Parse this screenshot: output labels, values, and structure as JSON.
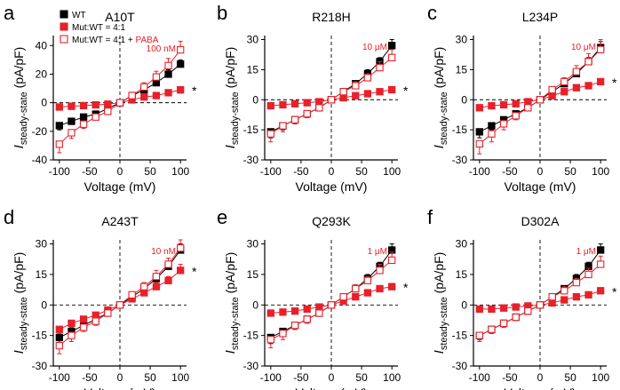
{
  "colors": {
    "wt": "#000000",
    "mut": "#e8202a",
    "paba": "#e8202a",
    "axis": "#000000",
    "dashed": "#000000",
    "paba_text": "#e8202a"
  },
  "legend": {
    "wt_label": "WT",
    "mut_label": "Mut:WT = 4:1",
    "paba_label_prefix": "Mut:WT = 4:1 + ",
    "paba_label_drug": "PABA"
  },
  "chart_data": [
    {
      "type": "line",
      "letter": "a",
      "title": "A10T",
      "concentration": "100 nM",
      "xlabel": "Voltage (mV)",
      "ylabel_main": "I",
      "ylabel_sub": "steady-state",
      "ylabel_unit": " (pA/pF)",
      "xlim": [
        -110,
        110
      ],
      "ylim": [
        -40,
        47
      ],
      "yticks": [
        -40,
        -20,
        0,
        20,
        40
      ],
      "xticks": [
        -100,
        -50,
        0,
        50,
        100
      ],
      "marker": "*",
      "x": [
        -100,
        -80,
        -60,
        -40,
        -20,
        0,
        20,
        40,
        60,
        80,
        100
      ],
      "series": [
        {
          "name": "WT",
          "style": "filled-black",
          "values": [
            -16,
            -13,
            -10,
            -8,
            -4,
            0,
            5,
            9,
            14,
            20,
            27
          ],
          "err": [
            3,
            2,
            2,
            2,
            1,
            0,
            1,
            2,
            2,
            3,
            3
          ]
        },
        {
          "name": "Mut:WT = 4:1",
          "style": "filled-red",
          "values": [
            -3,
            -2.5,
            -2,
            -1.5,
            -1,
            0,
            2,
            4,
            5,
            7,
            9
          ],
          "err": [
            1,
            1,
            1,
            1,
            0.5,
            0,
            1,
            1,
            1,
            1,
            1.5
          ]
        },
        {
          "name": "Mut:WT = 4:1 + PABA",
          "style": "open-red",
          "values": [
            -29,
            -21,
            -15,
            -10,
            -6,
            0,
            5,
            11,
            18,
            26,
            37
          ],
          "err": [
            6,
            4,
            3,
            2,
            1,
            0,
            2,
            3,
            4,
            5,
            6
          ]
        }
      ]
    },
    {
      "type": "line",
      "letter": "b",
      "title": "R218H",
      "concentration": "10 μM",
      "xlabel": "Voltage (mV)",
      "ylabel_main": "I",
      "ylabel_sub": "steady-state",
      "ylabel_unit": " (pA/pF)",
      "xlim": [
        -110,
        110
      ],
      "ylim": [
        -30,
        32
      ],
      "yticks": [
        -30,
        -15,
        0,
        15,
        30
      ],
      "xticks": [
        -100,
        -50,
        0,
        50,
        100
      ],
      "marker": "*",
      "x": [
        -100,
        -80,
        -60,
        -40,
        -20,
        0,
        20,
        40,
        60,
        80,
        100
      ],
      "series": [
        {
          "name": "WT",
          "style": "filled-black",
          "values": [
            -16,
            -13,
            -10,
            -7,
            -4,
            0,
            4,
            8,
            13,
            19,
            27
          ],
          "err": [
            3,
            2,
            2,
            1,
            1,
            0,
            1,
            1,
            2,
            2,
            3
          ]
        },
        {
          "name": "Mut:WT = 4:1",
          "style": "filled-red",
          "values": [
            -3,
            -2.5,
            -2,
            -1.5,
            -1,
            0,
            1,
            2,
            3,
            4,
            5
          ],
          "err": [
            1,
            1,
            0.5,
            0.5,
            0.5,
            0,
            0.5,
            0.5,
            0.5,
            1,
            1
          ]
        },
        {
          "name": "Mut:WT = 4:1 + PABA",
          "style": "open-red",
          "values": [
            -17,
            -13,
            -10,
            -7,
            -4,
            0,
            4,
            7,
            11,
            16,
            21
          ],
          "err": [
            4,
            3,
            2,
            2,
            1,
            0,
            1,
            2,
            2,
            3,
            4
          ]
        }
      ]
    },
    {
      "type": "line",
      "letter": "c",
      "title": "L234P",
      "concentration": "10 μM",
      "xlabel": "Voltage (mV)",
      "ylabel_main": "I",
      "ylabel_sub": "steady-state",
      "ylabel_unit": " (pA/pF)",
      "xlim": [
        -110,
        110
      ],
      "ylim": [
        -30,
        32
      ],
      "yticks": [
        -30,
        -15,
        0,
        15,
        30
      ],
      "xticks": [
        -100,
        -50,
        0,
        50,
        100
      ],
      "marker": "*",
      "x": [
        -100,
        -80,
        -60,
        -40,
        -20,
        0,
        20,
        40,
        60,
        80,
        100
      ],
      "series": [
        {
          "name": "WT",
          "style": "filled-black",
          "values": [
            -16,
            -13,
            -10,
            -7,
            -4,
            0,
            4,
            8,
            13,
            19,
            26
          ],
          "err": [
            3,
            2,
            2,
            1,
            1,
            0,
            1,
            1,
            2,
            2,
            3
          ]
        },
        {
          "name": "Mut:WT = 4:1",
          "style": "filled-red",
          "values": [
            -4,
            -3,
            -2.5,
            -2,
            -1,
            0,
            2,
            4,
            6,
            7,
            9
          ],
          "err": [
            1,
            1,
            1,
            0.5,
            0.5,
            0,
            0.5,
            1,
            1,
            1,
            1
          ]
        },
        {
          "name": "Mut:WT = 4:1 + PABA",
          "style": "open-red",
          "values": [
            -22,
            -17,
            -12,
            -8,
            -4,
            0,
            5,
            9,
            14,
            19,
            25
          ],
          "err": [
            5,
            4,
            3,
            2,
            1,
            0,
            1,
            2,
            3,
            4,
            5
          ]
        }
      ]
    },
    {
      "type": "line",
      "letter": "d",
      "title": "A243T",
      "concentration": "10 nM",
      "xlabel": "Voltage (mV)",
      "ylabel_main": "I",
      "ylabel_sub": "steady-state",
      "ylabel_unit": " (pA/pF)",
      "xlim": [
        -110,
        110
      ],
      "ylim": [
        -30,
        32
      ],
      "yticks": [
        -30,
        -15,
        0,
        15,
        30
      ],
      "xticks": [
        -100,
        -50,
        0,
        50,
        100
      ],
      "marker": "*",
      "x": [
        -100,
        -80,
        -60,
        -40,
        -20,
        0,
        20,
        40,
        60,
        80,
        100
      ],
      "series": [
        {
          "name": "WT",
          "style": "filled-black",
          "values": [
            -16,
            -13,
            -10,
            -7,
            -4,
            0,
            4,
            8,
            13,
            19,
            27
          ],
          "err": [
            3,
            2,
            2,
            1,
            1,
            0,
            1,
            1,
            2,
            2,
            3
          ]
        },
        {
          "name": "Mut:WT = 4:1",
          "style": "filled-red",
          "values": [
            -12,
            -9,
            -7,
            -5,
            -2.5,
            0,
            3,
            6,
            9,
            12,
            17
          ],
          "err": [
            2,
            2,
            1,
            1,
            1,
            0,
            1,
            1,
            2,
            2,
            3
          ]
        },
        {
          "name": "Mut:WT = 4:1 + PABA",
          "style": "open-red",
          "values": [
            -20,
            -15,
            -11,
            -8,
            -4,
            0,
            5,
            9,
            14,
            20,
            28
          ],
          "err": [
            4,
            3,
            2,
            2,
            1,
            0,
            1,
            2,
            3,
            3,
            4
          ]
        }
      ]
    },
    {
      "type": "line",
      "letter": "e",
      "title": "Q293K",
      "concentration": "1 μM",
      "xlabel": "Voltage (mV)",
      "ylabel_main": "I",
      "ylabel_sub": "steady-state",
      "ylabel_unit": " (pA/pF)",
      "xlim": [
        -110,
        110
      ],
      "ylim": [
        -30,
        32
      ],
      "yticks": [
        -30,
        -15,
        0,
        15,
        30
      ],
      "xticks": [
        -100,
        -50,
        0,
        50,
        100
      ],
      "marker": "*",
      "x": [
        -100,
        -80,
        -60,
        -40,
        -20,
        0,
        20,
        40,
        60,
        80,
        100
      ],
      "series": [
        {
          "name": "WT",
          "style": "filled-black",
          "values": [
            -16,
            -13,
            -10,
            -7,
            -4,
            0,
            4,
            8,
            13,
            19,
            27
          ],
          "err": [
            3,
            2,
            2,
            1,
            1,
            0,
            1,
            1,
            2,
            2,
            3
          ]
        },
        {
          "name": "Mut:WT = 4:1",
          "style": "filled-red",
          "values": [
            -4,
            -3.5,
            -3,
            -2,
            -1,
            0,
            2,
            4,
            6,
            8,
            9
          ],
          "err": [
            1,
            1,
            1,
            0.5,
            0.5,
            0,
            0.5,
            1,
            1,
            1,
            1
          ]
        },
        {
          "name": "Mut:WT = 4:1 + PABA",
          "style": "open-red",
          "values": [
            -17,
            -14,
            -10,
            -7,
            -4,
            0,
            4,
            8,
            12,
            17,
            22
          ],
          "err": [
            4,
            3,
            2,
            2,
            1,
            0,
            1,
            2,
            2,
            3,
            4
          ]
        }
      ]
    },
    {
      "type": "line",
      "letter": "f",
      "title": "D302A",
      "concentration": "1 μM",
      "xlabel": "Voltage (mV)",
      "ylabel_main": "I",
      "ylabel_sub": "steady-state",
      "ylabel_unit": " (pA/pF)",
      "xlim": [
        -110,
        110
      ],
      "ylim": [
        -30,
        32
      ],
      "yticks": [
        -30,
        -15,
        0,
        15,
        30
      ],
      "xticks": [
        -100,
        -50,
        0,
        50,
        100
      ],
      "marker": "*",
      "x": [
        -100,
        -80,
        -60,
        -40,
        -20,
        0,
        20,
        40,
        60,
        80,
        100
      ],
      "series": [
        {
          "name": "WT",
          "style": "filled-black",
          "values": [
            -15,
            -12,
            -9,
            -6,
            -3,
            0,
            4,
            8,
            13,
            19,
            27
          ],
          "err": [
            2,
            2,
            1,
            1,
            1,
            0,
            1,
            1,
            2,
            2,
            3
          ]
        },
        {
          "name": "Mut:WT = 4:1",
          "style": "filled-red",
          "values": [
            -2,
            -2,
            -1.5,
            -1,
            -0.5,
            0,
            1,
            2.5,
            4,
            5,
            7
          ],
          "err": [
            0.5,
            0.5,
            0.5,
            0.5,
            0.5,
            0,
            0.5,
            0.5,
            1,
            1,
            1
          ]
        },
        {
          "name": "Mut:WT = 4:1 + PABA",
          "style": "open-red",
          "values": [
            -15,
            -12,
            -9,
            -6,
            -3,
            0,
            4,
            7,
            11,
            15,
            20
          ],
          "err": [
            3,
            2,
            2,
            1,
            1,
            0,
            1,
            2,
            2,
            3,
            4
          ]
        }
      ]
    }
  ]
}
